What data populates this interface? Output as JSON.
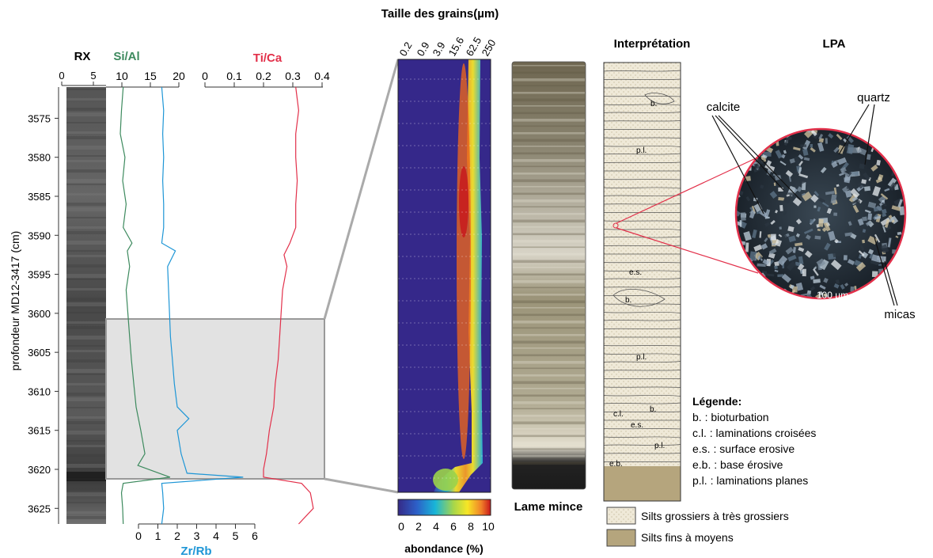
{
  "depth_axis": {
    "label": "profondeur MD12-3417 (cm)",
    "ticks": [
      "3575",
      "3580",
      "3585",
      "3590",
      "3595",
      "3600",
      "3605",
      "3610",
      "3615",
      "3620",
      "3625"
    ],
    "range": [
      3571,
      3627
    ]
  },
  "rx": {
    "title": "RX",
    "ticks": [
      "0",
      "5"
    ]
  },
  "si_al": {
    "title": "Si/Al",
    "ticks": [
      "10",
      "15",
      "20"
    ],
    "color": "#3d8a5e"
  },
  "ti_ca": {
    "title": "Ti/Ca",
    "ticks": [
      "0",
      "0.1",
      "0.2",
      "0.3",
      "0.4"
    ],
    "color": "#e2304a"
  },
  "zr_rb": {
    "title": "Zr/Rb",
    "ticks": [
      "0",
      "1",
      "2",
      "3",
      "4",
      "5",
      "6"
    ],
    "color": "#1e96d6"
  },
  "grain_size": {
    "title": "Taille des grains(µm)",
    "ticks": [
      "0.2",
      "0.9",
      "3.9",
      "15.6",
      "62.5",
      "250"
    ]
  },
  "abundance": {
    "title": "abondance (%)",
    "ticks": [
      "0",
      "2",
      "4",
      "6",
      "8",
      "10"
    ]
  },
  "thin_section": {
    "title": "Lame mince"
  },
  "interpretation": {
    "title": "Interprétation",
    "labels": [
      "b.",
      "p.l.",
      "e.s.",
      "b.",
      "p.l.",
      "c.l.",
      "b.",
      "e.s.",
      "p.l.",
      "e.b."
    ]
  },
  "lpa": {
    "title": "LPA",
    "labels": [
      "calcite",
      "quartz",
      "micas"
    ],
    "scale_bar": "100 µm"
  },
  "legend": {
    "title": "Légende:",
    "items": [
      "b. : bioturbation",
      "c.l. : laminations croisées",
      "e.s. : surface erosive",
      "e.b. : base érosive",
      "p.l. : laminations planes"
    ]
  },
  "facies": {
    "coarse": "Silts grossiers à très grossiers",
    "fine": "Silts fins à moyens",
    "coarse_color": "#efe9d8",
    "fine_color": "#b5a57d"
  },
  "chart_data": {
    "type": "line",
    "xlabel": "",
    "ylabel": "profondeur MD12-3417 (cm)",
    "ylim": [
      3571,
      3627
    ],
    "highlight_range": [
      3601,
      3621
    ],
    "series": [
      {
        "name": "Si/Al",
        "xlim": [
          0,
          20
        ],
        "depth": [
          3571,
          3574,
          3577,
          3580,
          3583,
          3586,
          3589,
          3591,
          3592,
          3594,
          3597,
          3600,
          3603,
          3606,
          3609,
          3612,
          3615,
          3618,
          3619.5,
          3621,
          3621.8,
          3623,
          3625,
          3627
        ],
        "values": [
          10.5,
          10.2,
          10.0,
          10.8,
          10.4,
          11.0,
          10.5,
          12.0,
          11.2,
          11.6,
          11.0,
          11.3,
          11.6,
          11.9,
          12.3,
          12.7,
          13.5,
          14.2,
          13.0,
          18.5,
          10.5,
          10.2,
          10.4,
          10.5
        ]
      },
      {
        "name": "Ti/Ca",
        "xlim": [
          0,
          0.4
        ],
        "depth": [
          3571,
          3574,
          3577,
          3580,
          3583,
          3586,
          3589,
          3591,
          3592.5,
          3594,
          3597,
          3600,
          3603,
          3606,
          3609,
          3612,
          3615,
          3618,
          3620,
          3621,
          3621.8,
          3623,
          3625,
          3627
        ],
        "values": [
          0.31,
          0.32,
          0.31,
          0.31,
          0.315,
          0.31,
          0.31,
          0.29,
          0.27,
          0.28,
          0.265,
          0.26,
          0.255,
          0.25,
          0.24,
          0.235,
          0.22,
          0.21,
          0.2,
          0.2,
          0.33,
          0.36,
          0.37,
          0.32
        ]
      },
      {
        "name": "Zr/Rb",
        "xlim": [
          0,
          6
        ],
        "depth": [
          3571,
          3574,
          3577,
          3580,
          3583,
          3586,
          3589,
          3591,
          3592,
          3594,
          3597,
          3600,
          3603,
          3606,
          3609,
          3612,
          3613.5,
          3615,
          3618,
          3620.5,
          3621,
          3621.8,
          3623,
          3625,
          3627
        ],
        "values": [
          1.2,
          1.3,
          1.25,
          1.3,
          1.25,
          1.3,
          1.3,
          1.2,
          1.9,
          1.5,
          1.55,
          1.6,
          1.65,
          1.75,
          1.85,
          2.0,
          2.6,
          2.0,
          2.2,
          2.5,
          5.4,
          1.2,
          1.25,
          1.3,
          1.2
        ]
      }
    ]
  }
}
